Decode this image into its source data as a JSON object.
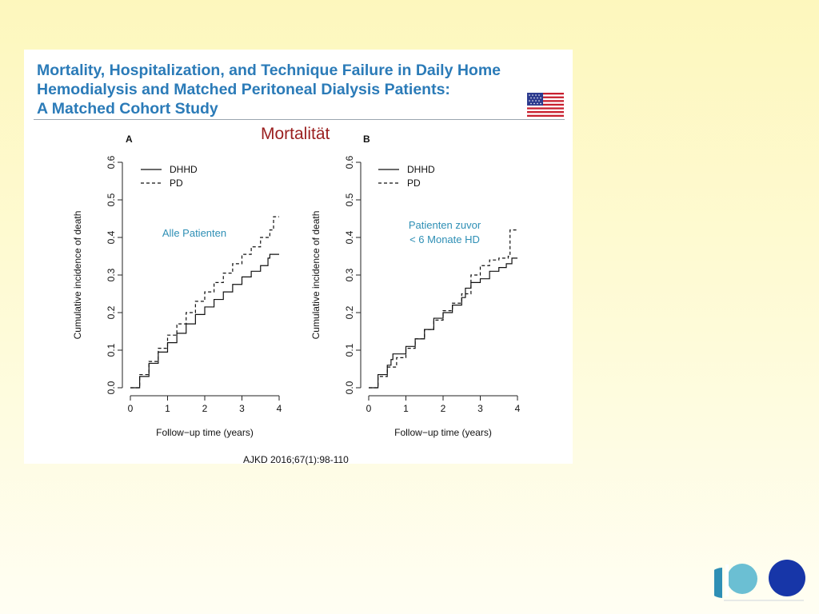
{
  "slide": {
    "title_lines": [
      "Mortality, Hospitalization, and Technique Failure in Daily Home",
      "Hemodialysis and Matched Peritoneal Dialysis Patients:",
      "A Matched Cohort Study"
    ],
    "section_label": "Mortalität",
    "citation": "AJKD 2016;67(1):98-110",
    "colors": {
      "title": "#2b7bb8",
      "section_label": "#9a1f1f",
      "annotation": "#2e8fb5",
      "logo_light": "#6bbfd3",
      "logo_dark": "#1736a8"
    },
    "icons": [
      "us-flag-icon",
      "clinic-logo-icon"
    ]
  },
  "chart_data": [
    {
      "type": "line",
      "panel_label": "A",
      "annotation": "Alle Patienten",
      "xlabel": "Follow−up time (years)",
      "ylabel": "Cumulative incidence of death",
      "xlim": [
        0,
        4
      ],
      "ylim": [
        0,
        0.6
      ],
      "x_ticks": [
        "0",
        "1",
        "2",
        "3",
        "4"
      ],
      "y_ticks": [
        "0.0",
        "0.1",
        "0.2",
        "0.3",
        "0.4",
        "0.5",
        "0.6"
      ],
      "legend_position": "top-left",
      "series": [
        {
          "name": "DHHD",
          "style": "solid",
          "x": [
            0,
            0.25,
            0.5,
            0.75,
            1.0,
            1.25,
            1.5,
            1.75,
            2.0,
            2.25,
            2.5,
            2.75,
            3.0,
            3.25,
            3.5,
            3.7,
            3.75,
            4.0
          ],
          "y": [
            0,
            0.03,
            0.065,
            0.095,
            0.12,
            0.145,
            0.17,
            0.195,
            0.215,
            0.235,
            0.255,
            0.275,
            0.295,
            0.31,
            0.325,
            0.345,
            0.355,
            0.355
          ]
        },
        {
          "name": "PD",
          "style": "dashed",
          "x": [
            0,
            0.25,
            0.5,
            0.75,
            1.0,
            1.25,
            1.5,
            1.75,
            2.0,
            2.25,
            2.5,
            2.75,
            3.0,
            3.25,
            3.5,
            3.75,
            3.85,
            4.0
          ],
          "y": [
            0,
            0.035,
            0.07,
            0.105,
            0.14,
            0.17,
            0.2,
            0.23,
            0.255,
            0.28,
            0.305,
            0.33,
            0.355,
            0.375,
            0.4,
            0.42,
            0.455,
            0.455
          ]
        }
      ]
    },
    {
      "type": "line",
      "panel_label": "B",
      "annotation": "Patienten zuvor\n< 6 Monate HD",
      "xlabel": "Follow−up time (years)",
      "ylabel": "Cumulative incidence of death",
      "xlim": [
        0,
        4
      ],
      "ylim": [
        0,
        0.6
      ],
      "x_ticks": [
        "0",
        "1",
        "2",
        "3",
        "4"
      ],
      "y_ticks": [
        "0.0",
        "0.1",
        "0.2",
        "0.3",
        "0.4",
        "0.5",
        "0.6"
      ],
      "legend_position": "top-left",
      "series": [
        {
          "name": "DHHD",
          "style": "solid",
          "x": [
            0,
            0.25,
            0.5,
            0.6,
            0.65,
            1.0,
            1.25,
            1.5,
            1.75,
            2.0,
            2.25,
            2.5,
            2.6,
            2.75,
            3.0,
            3.25,
            3.5,
            3.7,
            3.85,
            4.0
          ],
          "y": [
            0,
            0.035,
            0.06,
            0.075,
            0.09,
            0.11,
            0.13,
            0.155,
            0.185,
            0.2,
            0.22,
            0.24,
            0.265,
            0.28,
            0.29,
            0.31,
            0.32,
            0.33,
            0.345,
            0.345
          ]
        },
        {
          "name": "PD",
          "style": "dashed",
          "x": [
            0,
            0.25,
            0.5,
            0.75,
            1.0,
            1.25,
            1.5,
            1.75,
            2.0,
            2.25,
            2.5,
            2.75,
            3.0,
            3.25,
            3.5,
            3.75,
            3.8,
            4.0
          ],
          "y": [
            0,
            0.03,
            0.055,
            0.08,
            0.105,
            0.13,
            0.155,
            0.18,
            0.205,
            0.225,
            0.25,
            0.3,
            0.325,
            0.34,
            0.345,
            0.35,
            0.42,
            0.42
          ]
        }
      ]
    }
  ]
}
